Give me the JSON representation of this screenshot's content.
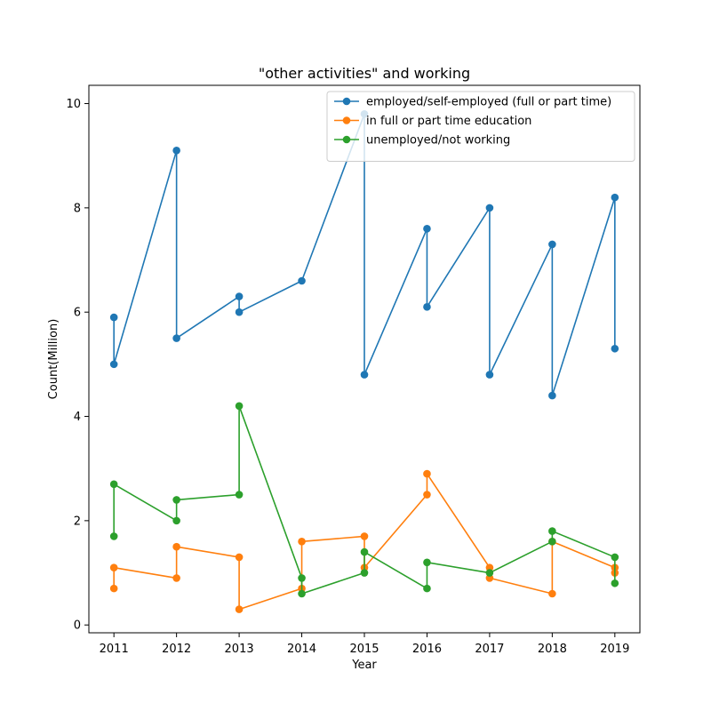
{
  "chart_data": {
    "type": "line",
    "title": "\"other activities\" and working",
    "xlabel": "Year",
    "ylabel": "Count(Million)",
    "xlim": [
      2010.6,
      2019.4
    ],
    "ylim": [
      -0.15,
      10.35
    ],
    "xticks": [
      "2011",
      "2012",
      "2013",
      "2014",
      "2015",
      "2016",
      "2017",
      "2018",
      "2019"
    ],
    "yticks": [
      "0",
      "2",
      "4",
      "6",
      "8",
      "10"
    ],
    "legend_position": "top-right",
    "series": [
      {
        "name": "employed/self-employed (full or part time)",
        "color": "#1f77b4",
        "x": [
          2011,
          2011,
          2012,
          2012,
          2013,
          2013,
          2014,
          2015,
          2015,
          2016,
          2016,
          2017,
          2017,
          2018,
          2018,
          2019,
          2019
        ],
        "y": [
          5.9,
          5.0,
          9.1,
          5.5,
          6.3,
          6.0,
          6.6,
          9.8,
          4.8,
          7.6,
          6.1,
          8.0,
          4.8,
          7.3,
          4.4,
          8.2,
          5.3
        ]
      },
      {
        "name": "in full or part time education",
        "color": "#ff7f0e",
        "x": [
          2011,
          2011,
          2012,
          2012,
          2013,
          2013,
          2014,
          2014,
          2015,
          2015,
          2016,
          2016,
          2017,
          2017,
          2018,
          2018,
          2019,
          2019
        ],
        "y": [
          0.7,
          1.1,
          0.9,
          1.5,
          1.3,
          0.3,
          0.7,
          1.6,
          1.7,
          1.1,
          2.5,
          2.9,
          1.1,
          0.9,
          0.6,
          1.6,
          1.1,
          1.0
        ]
      },
      {
        "name": "unemployed/not working",
        "color": "#2ca02c",
        "x": [
          2011,
          2011,
          2012,
          2012,
          2013,
          2013,
          2014,
          2014,
          2015,
          2015,
          2016,
          2016,
          2017,
          2018,
          2018,
          2019,
          2019
        ],
        "y": [
          1.7,
          2.7,
          2.0,
          2.4,
          2.5,
          4.2,
          0.9,
          0.6,
          1.0,
          1.4,
          0.7,
          1.2,
          1.0,
          1.6,
          1.8,
          1.3,
          0.8
        ]
      }
    ]
  }
}
